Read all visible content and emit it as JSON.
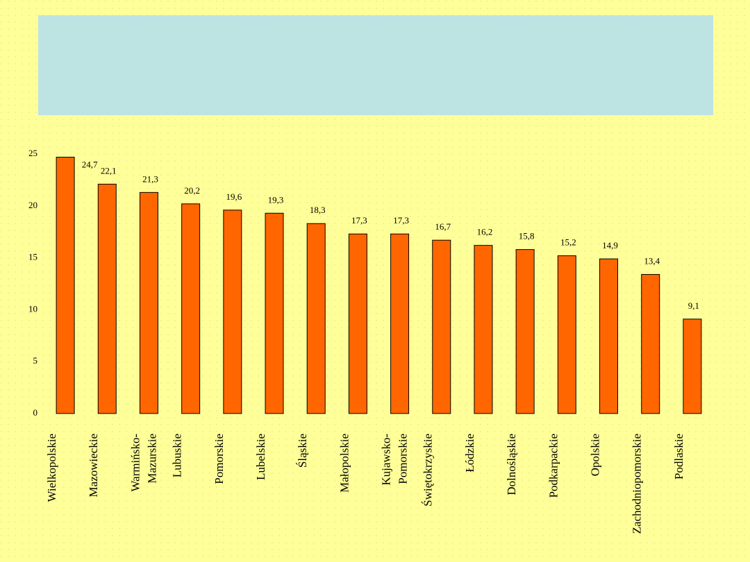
{
  "chart_data": {
    "type": "bar",
    "categories": [
      "Wielkopolskie",
      "Mazowieckie",
      "Warmińsko-Mazurskie",
      "Lubuskie",
      "Pomorskie",
      "Lubelskie",
      "Śląskie",
      "Małopolskie",
      "Kujawsko-Pomorskie",
      "Świętokrzyskie",
      "Łódzkie",
      "Dolnośląskie",
      "Podkarpackie",
      "Opolskie",
      "Zachodniopomorskie",
      "Podlaskie"
    ],
    "values": [
      24.7,
      22.1,
      21.3,
      20.2,
      19.6,
      19.3,
      18.3,
      17.3,
      17.3,
      16.7,
      16.2,
      15.8,
      15.2,
      14.9,
      13.4,
      9.1
    ],
    "value_labels": [
      "24,7",
      "22,1",
      "21,3",
      "20,2",
      "19,6",
      "19,3",
      "18,3",
      "17,3",
      "17,3",
      "16,7",
      "16,2",
      "15,8",
      "15,2",
      "14,9",
      "13,4",
      "9,1"
    ],
    "color": "#ff6600",
    "ylim": [
      0,
      25
    ],
    "yticks": [
      0,
      5,
      10,
      15,
      20,
      25
    ],
    "grid": false
  }
}
